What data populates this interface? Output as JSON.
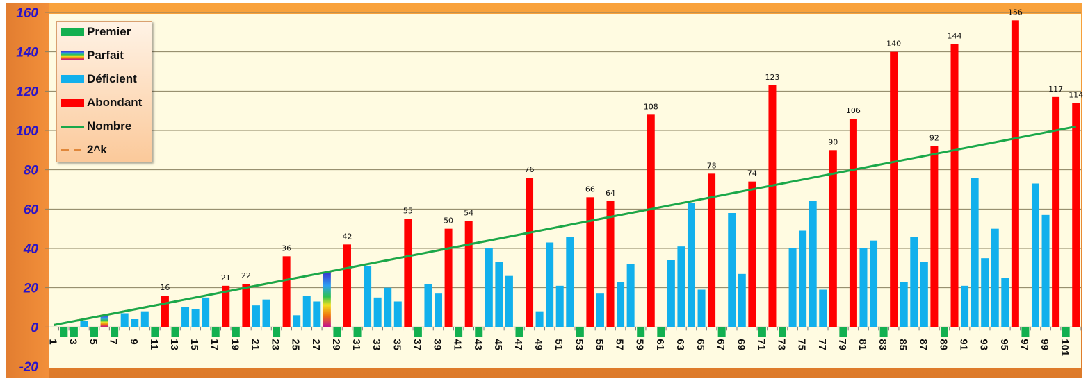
{
  "chart_data": {
    "type": "bar",
    "title": "",
    "xlabel": "",
    "ylabel": "",
    "ylim": [
      -20,
      160
    ],
    "yticks": [
      -20,
      0,
      20,
      40,
      60,
      80,
      100,
      120,
      140,
      160
    ],
    "grid": true,
    "legend_position": "top-left",
    "categories_range": [
      1,
      102
    ],
    "prime_display_value": -5,
    "series": [
      {
        "name": "Premier",
        "color": "#13b050",
        "x": [
          2,
          3,
          5,
          7,
          11,
          13,
          17,
          19,
          23,
          29,
          31,
          37,
          41,
          43,
          47,
          53,
          59,
          61,
          67,
          71,
          73,
          79,
          83,
          89,
          97,
          101
        ]
      },
      {
        "name": "Parfait",
        "color": "rainbow",
        "x": [
          6,
          28
        ],
        "values": [
          6,
          28
        ]
      },
      {
        "name": "Déficient",
        "color": "#12b0ec",
        "x": [
          1,
          4,
          8,
          9,
          10,
          14,
          15,
          16,
          21,
          22,
          25,
          26,
          27,
          32,
          33,
          34,
          35,
          38,
          39,
          44,
          45,
          46,
          49,
          50,
          51,
          52,
          55,
          57,
          58,
          62,
          63,
          64,
          65,
          68,
          69,
          74,
          75,
          76,
          77,
          81,
          82,
          85,
          86,
          87,
          91,
          92,
          93,
          94,
          95,
          98,
          99
        ],
        "values": [
          0,
          3,
          7,
          4,
          8,
          10,
          9,
          15,
          11,
          14,
          6,
          16,
          13,
          31,
          15,
          20,
          13,
          22,
          17,
          40,
          33,
          26,
          8,
          43,
          21,
          46,
          17,
          23,
          32,
          34,
          41,
          63,
          19,
          58,
          27,
          40,
          49,
          64,
          19,
          40,
          44,
          23,
          46,
          33,
          21,
          76,
          35,
          50,
          25,
          73,
          57
        ]
      },
      {
        "name": "Abondant",
        "color": "#ff0000",
        "x": [
          12,
          18,
          20,
          24,
          30,
          36,
          40,
          42,
          48,
          54,
          56,
          60,
          66,
          70,
          72,
          78,
          80,
          84,
          88,
          90,
          96,
          100,
          102
        ],
        "values": [
          16,
          21,
          22,
          36,
          42,
          55,
          50,
          54,
          76,
          66,
          64,
          108,
          78,
          74,
          123,
          90,
          106,
          140,
          92,
          144,
          156,
          117,
          114
        ]
      },
      {
        "name": "Nombre",
        "type": "line",
        "color": "#1aa84a",
        "x": [
          1,
          102
        ],
        "values": [
          1,
          102
        ]
      },
      {
        "name": "2^k",
        "type": "line",
        "dashed": true,
        "color": "#e0873a",
        "x": [
          1,
          2,
          4,
          8,
          16,
          32,
          64
        ],
        "values": [
          1,
          2,
          4,
          8,
          16,
          32,
          64
        ]
      }
    ]
  }
}
